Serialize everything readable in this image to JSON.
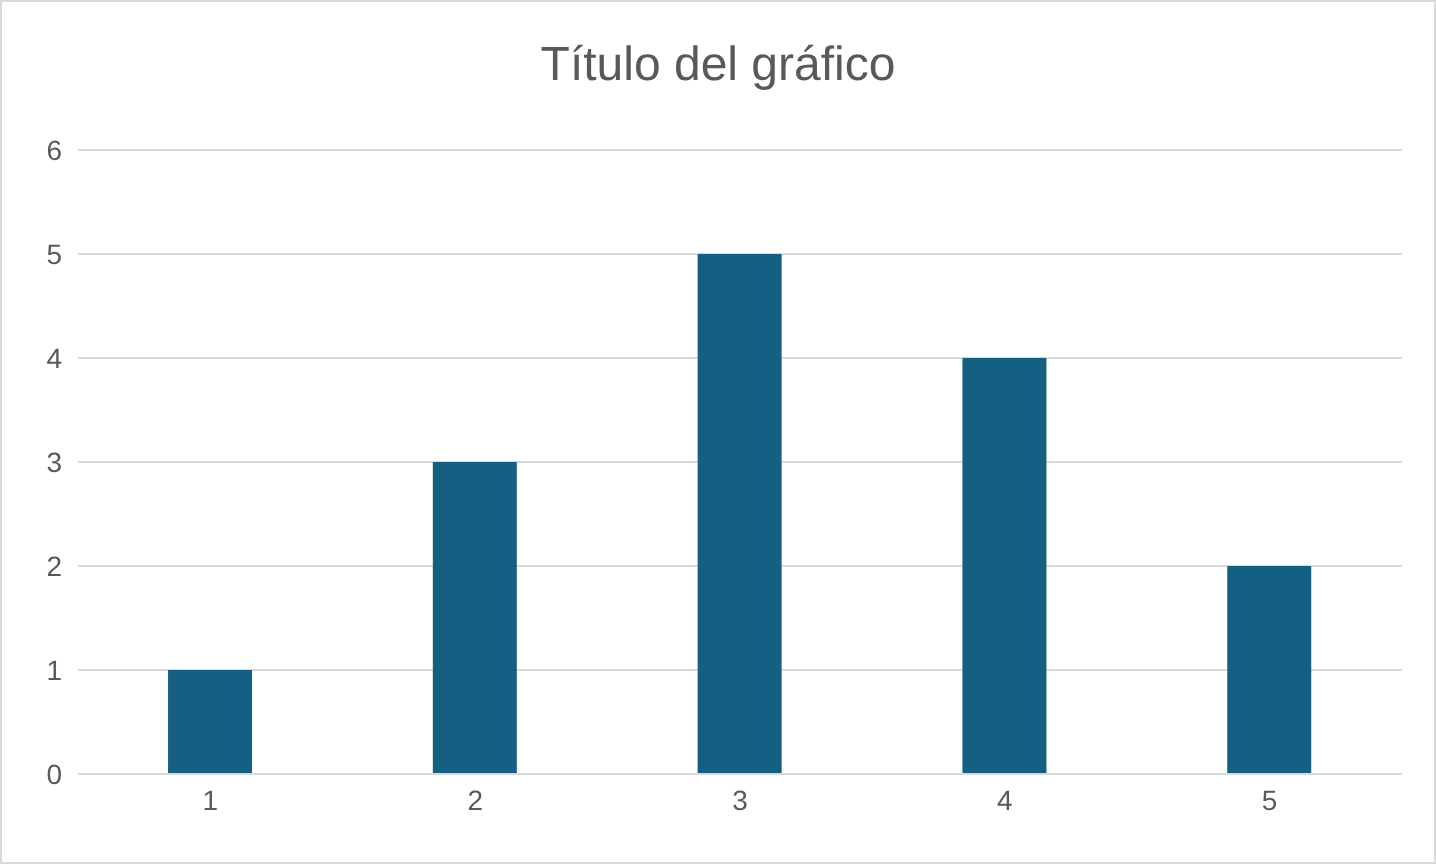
{
  "chart_data": {
    "type": "bar",
    "title": "Título del gráfico",
    "categories": [
      "1",
      "2",
      "3",
      "4",
      "5"
    ],
    "values": [
      1,
      3,
      5,
      4,
      2
    ],
    "color": "#156082",
    "ylim": [
      0,
      6
    ],
    "yticks": [
      0,
      1,
      2,
      3,
      4,
      5,
      6
    ],
    "grid": "y"
  }
}
